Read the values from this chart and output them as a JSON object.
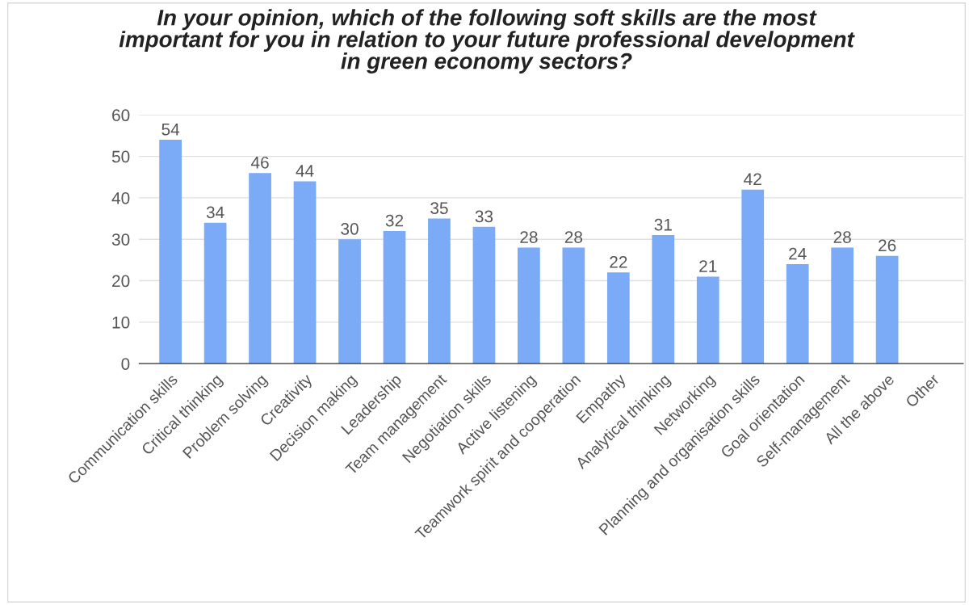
{
  "chart_data": {
    "type": "bar",
    "title": "In your opinion, which of the following soft skills are the most\nimportant for you in relation to your future professional development\nin green economy sectors?",
    "categories": [
      "Communication skills",
      "Critical thinking",
      "Problem solving",
      "Creativity",
      "Decision making",
      "Leadership",
      "Team management",
      "Negotiation skills",
      "Active listening",
      "Teamwork spirit and cooperation",
      "Empathy",
      "Analytical thinking",
      "Networking",
      "Planning and organisation skills",
      "Goal orientation",
      "Self-management",
      "All the above",
      "Other"
    ],
    "values": [
      54,
      34,
      46,
      44,
      30,
      32,
      35,
      33,
      28,
      28,
      22,
      31,
      21,
      42,
      24,
      28,
      26,
      null
    ],
    "color": "#7baaf7",
    "ylim": [
      0,
      60
    ],
    "yticks": [
      0,
      10,
      20,
      30,
      40,
      50,
      60
    ],
    "grid": "y",
    "data_labels": true,
    "legend": false
  }
}
